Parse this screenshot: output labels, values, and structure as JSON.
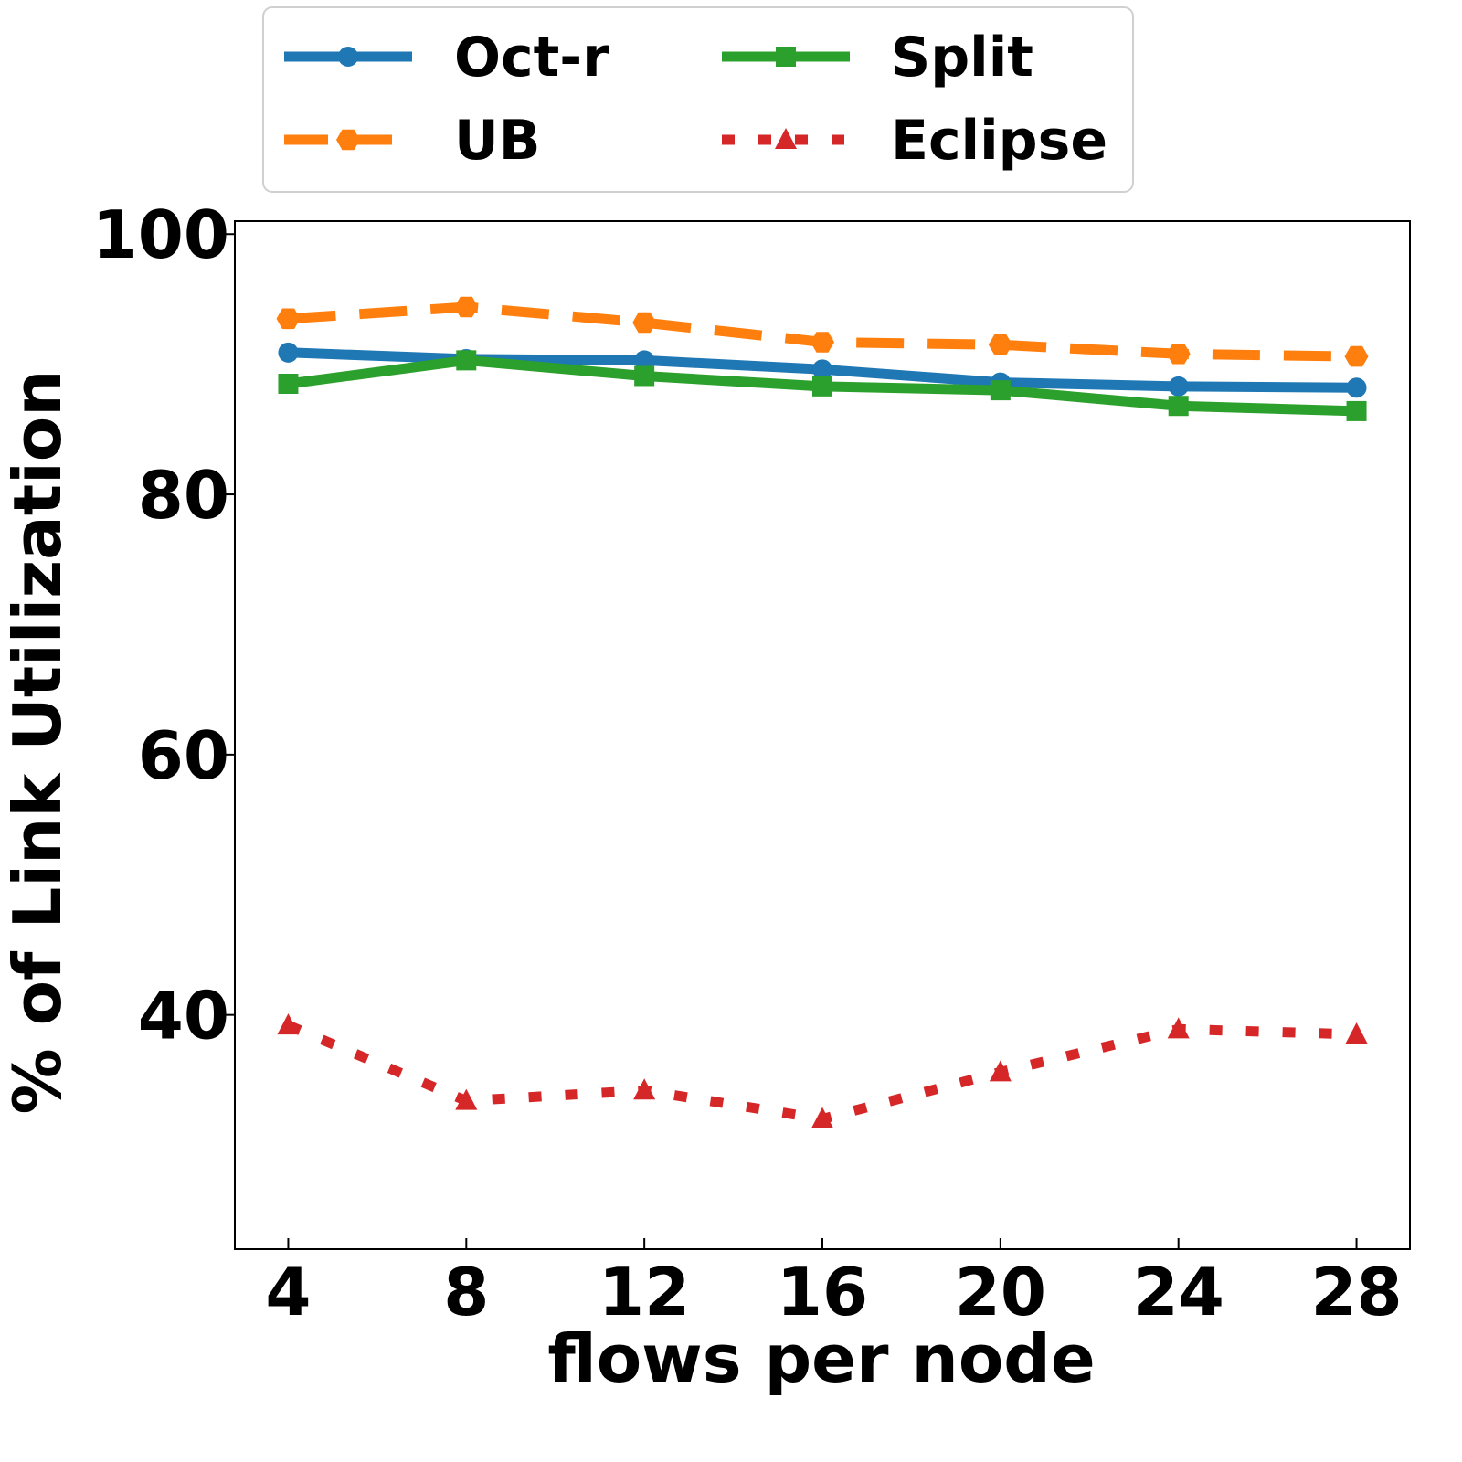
{
  "chart_data": {
    "type": "line",
    "xlabel": "flows per node",
    "ylabel": "% of Link Utilization",
    "x": [
      4,
      8,
      12,
      16,
      20,
      24,
      28
    ],
    "xticks": [
      "4",
      "8",
      "12",
      "16",
      "20",
      "24",
      "28"
    ],
    "yticks": [
      "40",
      "60",
      "80",
      "100"
    ],
    "xlim": [
      2.8,
      29.2
    ],
    "ylim": [
      22,
      101
    ],
    "grid": false,
    "legend_position": "top, above plot, 2 columns",
    "series": [
      {
        "name": "Oct-r",
        "values": [
          90.9,
          90.4,
          90.3,
          89.6,
          88.6,
          88.3,
          88.2
        ],
        "color": "#1f77b4",
        "line_style": "solid",
        "marker": "circle"
      },
      {
        "name": "UB",
        "values": [
          93.5,
          94.4,
          93.2,
          91.7,
          91.5,
          90.8,
          90.6
        ],
        "color": "#ff7f0e",
        "line_style": "dashed",
        "marker": "hexagon"
      },
      {
        "name": "Split",
        "values": [
          88.5,
          90.3,
          89.1,
          88.3,
          88.0,
          86.8,
          86.4
        ],
        "color": "#2ca02c",
        "line_style": "solid",
        "marker": "square"
      },
      {
        "name": "Eclipse",
        "values": [
          39.2,
          33.4,
          34.2,
          32.0,
          35.6,
          38.9,
          38.5
        ],
        "color": "#d62728",
        "line_style": "dotted",
        "marker": "triangle"
      }
    ]
  }
}
